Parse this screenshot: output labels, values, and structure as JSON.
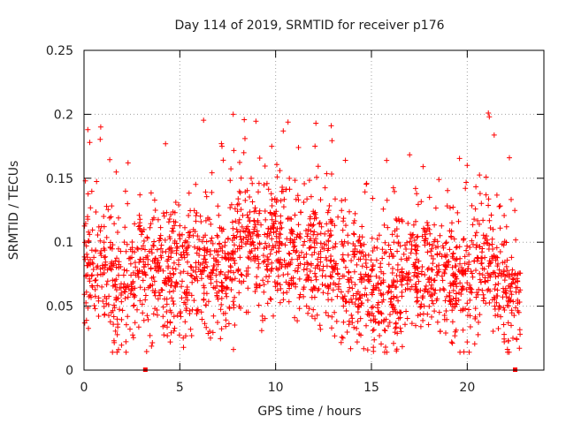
{
  "chart_data": {
    "type": "scatter",
    "title": "Day 114 of 2019, SRMTID for receiver p176",
    "xlabel": "GPS time / hours",
    "ylabel": "SRMTID / TECUs",
    "xlim": [
      0,
      24
    ],
    "ylim": [
      0,
      0.25
    ],
    "xticks": [
      0,
      5,
      10,
      15,
      20
    ],
    "yticks": [
      0,
      0.05,
      0.1,
      0.15,
      0.2,
      0.25
    ],
    "xtick_labels": [
      "0",
      "5",
      "10",
      "15",
      "20"
    ],
    "ytick_labels": [
      "0",
      "0.05",
      "0.1",
      "0.15",
      "0.2",
      "0.25"
    ],
    "grid": true,
    "marker": "+",
    "color": "#ff0000",
    "trend": [
      {
        "x": 0,
        "y": 0.085
      },
      {
        "x": 1,
        "y": 0.075
      },
      {
        "x": 2,
        "y": 0.062
      },
      {
        "x": 3,
        "y": 0.072
      },
      {
        "x": 4,
        "y": 0.078
      },
      {
        "x": 5,
        "y": 0.078
      },
      {
        "x": 6,
        "y": 0.082
      },
      {
        "x": 7,
        "y": 0.08
      },
      {
        "x": 8,
        "y": 0.088
      },
      {
        "x": 9,
        "y": 0.098
      },
      {
        "x": 10,
        "y": 0.096
      },
      {
        "x": 11,
        "y": 0.092
      },
      {
        "x": 12,
        "y": 0.088
      },
      {
        "x": 13,
        "y": 0.085
      },
      {
        "x": 14,
        "y": 0.07
      },
      {
        "x": 15,
        "y": 0.064
      },
      {
        "x": 16,
        "y": 0.064
      },
      {
        "x": 17,
        "y": 0.074
      },
      {
        "x": 18,
        "y": 0.078
      },
      {
        "x": 19,
        "y": 0.07
      },
      {
        "x": 20,
        "y": 0.066
      },
      {
        "x": 21,
        "y": 0.085
      },
      {
        "x": 22,
        "y": 0.062
      },
      {
        "x": 22.8,
        "y": 0.058
      }
    ],
    "x_end": 22.8,
    "points_per_hour": 95,
    "notable_points": [
      {
        "x": 0.2,
        "y": 0.188
      },
      {
        "x": 0.3,
        "y": 0.178
      },
      {
        "x": 2.3,
        "y": 0.162
      },
      {
        "x": 7.2,
        "y": 0.175
      },
      {
        "x": 8.4,
        "y": 0.181
      },
      {
        "x": 9.8,
        "y": 0.175
      },
      {
        "x": 10.4,
        "y": 0.187
      },
      {
        "x": 12.1,
        "y": 0.193
      },
      {
        "x": 12.9,
        "y": 0.191
      },
      {
        "x": 20.0,
        "y": 0.16
      },
      {
        "x": 21.1,
        "y": 0.201
      },
      {
        "x": 21.15,
        "y": 0.198
      },
      {
        "x": 22.2,
        "y": 0.166
      },
      {
        "x": 1.8,
        "y": 0.016
      },
      {
        "x": 16.3,
        "y": 0.015
      },
      {
        "x": 20.0,
        "y": 0.022
      },
      {
        "x": 4.5,
        "y": 0.022
      },
      {
        "x": 6.6,
        "y": 0.025
      }
    ],
    "zero_markers": [
      {
        "x": 3.2,
        "y": 0
      },
      {
        "x": 22.5,
        "y": 0
      }
    ]
  }
}
